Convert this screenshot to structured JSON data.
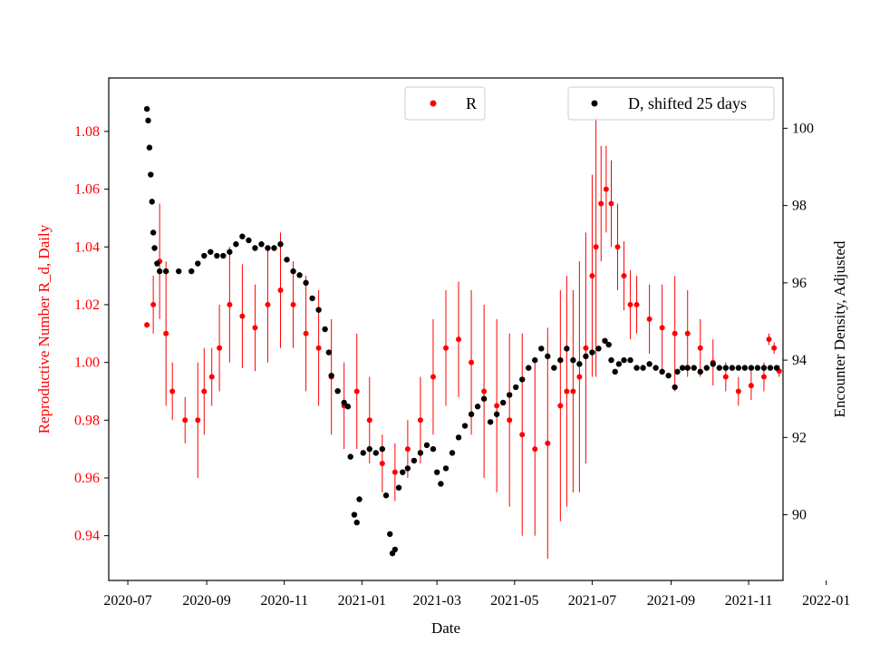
{
  "chart_data": {
    "type": "scatter",
    "title": "",
    "xlabel": "Date",
    "ylabel_left": "Reproductive Number R_d, Daily",
    "ylabel_right": "Encounter Density, Adjusted",
    "x_start": "2020-07-01",
    "x_end": "2022-01-01",
    "xlim_days": [
      -15,
      515
    ],
    "x_ticks": [
      {
        "label": "2020-07",
        "day": 0
      },
      {
        "label": "2020-09",
        "day": 62
      },
      {
        "label": "2020-11",
        "day": 123
      },
      {
        "label": "2021-01",
        "day": 184
      },
      {
        "label": "2021-03",
        "day": 243
      },
      {
        "label": "2021-05",
        "day": 304
      },
      {
        "label": "2021-07",
        "day": 365
      },
      {
        "label": "2021-09",
        "day": 427
      },
      {
        "label": "2021-11",
        "day": 488
      },
      {
        "label": "2022-01",
        "day": 549
      }
    ],
    "left_axis": {
      "ylim": [
        0.9245,
        1.0985
      ],
      "ticks": [
        "0.94",
        "0.96",
        "0.98",
        "1.00",
        "1.02",
        "1.04",
        "1.06",
        "1.08"
      ],
      "color": "#ff0000"
    },
    "right_axis": {
      "ylim": [
        88.3,
        101.3
      ],
      "ticks": [
        "90",
        "92",
        "94",
        "96",
        "98",
        "100"
      ],
      "color": "#000000"
    },
    "legend": [
      {
        "label": "R",
        "color": "#ff0000",
        "position": "top-center"
      },
      {
        "label": "D, shifted 25 days",
        "color": "#000000",
        "position": "top-right"
      }
    ],
    "series": [
      {
        "name": "R",
        "axis": "left",
        "color": "#ff0000",
        "marker": "dot-with-errorbar",
        "points": [
          [
            15,
            1.013,
            0.001
          ],
          [
            20,
            1.02,
            0.01
          ],
          [
            25,
            1.035,
            0.02
          ],
          [
            30,
            1.01,
            0.025
          ],
          [
            35,
            0.99,
            0.01
          ],
          [
            45,
            0.98,
            0.008
          ],
          [
            55,
            0.98,
            0.02
          ],
          [
            60,
            0.99,
            0.015
          ],
          [
            66,
            0.995,
            0.01
          ],
          [
            72,
            1.005,
            0.015
          ],
          [
            80,
            1.02,
            0.02
          ],
          [
            90,
            1.016,
            0.018
          ],
          [
            100,
            1.012,
            0.015
          ],
          [
            110,
            1.02,
            0.02
          ],
          [
            120,
            1.025,
            0.02
          ],
          [
            130,
            1.02,
            0.015
          ],
          [
            140,
            1.01,
            0.02
          ],
          [
            150,
            1.005,
            0.02
          ],
          [
            160,
            0.995,
            0.02
          ],
          [
            170,
            0.985,
            0.015
          ],
          [
            180,
            0.99,
            0.02
          ],
          [
            190,
            0.98,
            0.015
          ],
          [
            200,
            0.965,
            0.01
          ],
          [
            210,
            0.962,
            0.01
          ],
          [
            220,
            0.97,
            0.01
          ],
          [
            230,
            0.98,
            0.015
          ],
          [
            240,
            0.995,
            0.02
          ],
          [
            250,
            1.005,
            0.02
          ],
          [
            260,
            1.008,
            0.02
          ],
          [
            270,
            1.0,
            0.025
          ],
          [
            280,
            0.99,
            0.03
          ],
          [
            290,
            0.985,
            0.03
          ],
          [
            300,
            0.98,
            0.03
          ],
          [
            310,
            0.975,
            0.035
          ],
          [
            320,
            0.97,
            0.03
          ],
          [
            330,
            0.972,
            0.04
          ],
          [
            340,
            0.985,
            0.04
          ],
          [
            345,
            0.99,
            0.04
          ],
          [
            350,
            0.99,
            0.035
          ],
          [
            355,
            0.995,
            0.04
          ],
          [
            360,
            1.005,
            0.04
          ],
          [
            365,
            1.03,
            0.035
          ],
          [
            368,
            1.04,
            0.045
          ],
          [
            372,
            1.055,
            0.02
          ],
          [
            376,
            1.06,
            0.015
          ],
          [
            380,
            1.055,
            0.015
          ],
          [
            385,
            1.04,
            0.015
          ],
          [
            390,
            1.03,
            0.012
          ],
          [
            395,
            1.02,
            0.012
          ],
          [
            400,
            1.02,
            0.01
          ],
          [
            410,
            1.015,
            0.012
          ],
          [
            420,
            1.012,
            0.015
          ],
          [
            430,
            1.01,
            0.02
          ],
          [
            440,
            1.01,
            0.015
          ],
          [
            450,
            1.005,
            0.01
          ],
          [
            460,
            1.0,
            0.008
          ],
          [
            470,
            0.995,
            0.005
          ],
          [
            480,
            0.99,
            0.005
          ],
          [
            490,
            0.992,
            0.005
          ],
          [
            500,
            0.995,
            0.005
          ],
          [
            504,
            1.008,
            0.002
          ],
          [
            508,
            1.005,
            0.002
          ],
          [
            512,
            0.997,
            0.002
          ]
        ]
      },
      {
        "name": "D, shifted 25 days",
        "axis": "right",
        "color": "#000000",
        "marker": "dot",
        "points": [
          [
            15,
            100.5
          ],
          [
            16,
            100.2
          ],
          [
            17,
            99.5
          ],
          [
            18,
            98.8
          ],
          [
            19,
            98.1
          ],
          [
            20,
            97.3
          ],
          [
            21,
            96.9
          ],
          [
            23,
            96.5
          ],
          [
            25,
            96.3
          ],
          [
            30,
            96.3
          ],
          [
            40,
            96.3
          ],
          [
            50,
            96.3
          ],
          [
            55,
            96.5
          ],
          [
            60,
            96.7
          ],
          [
            65,
            96.8
          ],
          [
            70,
            96.7
          ],
          [
            75,
            96.7
          ],
          [
            80,
            96.8
          ],
          [
            85,
            97.0
          ],
          [
            90,
            97.2
          ],
          [
            95,
            97.1
          ],
          [
            100,
            96.9
          ],
          [
            105,
            97.0
          ],
          [
            110,
            96.9
          ],
          [
            115,
            96.9
          ],
          [
            120,
            97.0
          ],
          [
            125,
            96.6
          ],
          [
            130,
            96.3
          ],
          [
            135,
            96.2
          ],
          [
            140,
            96.0
          ],
          [
            145,
            95.6
          ],
          [
            150,
            95.3
          ],
          [
            155,
            94.8
          ],
          [
            158,
            94.2
          ],
          [
            160,
            93.6
          ],
          [
            165,
            93.2
          ],
          [
            170,
            92.9
          ],
          [
            173,
            92.8
          ],
          [
            175,
            91.5
          ],
          [
            178,
            90.0
          ],
          [
            180,
            89.8
          ],
          [
            182,
            90.4
          ],
          [
            185,
            91.6
          ],
          [
            190,
            91.7
          ],
          [
            195,
            91.6
          ],
          [
            200,
            91.7
          ],
          [
            203,
            90.5
          ],
          [
            206,
            89.5
          ],
          [
            208,
            89.0
          ],
          [
            210,
            89.1
          ],
          [
            213,
            90.7
          ],
          [
            216,
            91.1
          ],
          [
            220,
            91.2
          ],
          [
            225,
            91.4
          ],
          [
            230,
            91.6
          ],
          [
            235,
            91.8
          ],
          [
            240,
            91.7
          ],
          [
            243,
            91.1
          ],
          [
            246,
            90.8
          ],
          [
            250,
            91.2
          ],
          [
            255,
            91.6
          ],
          [
            260,
            92.0
          ],
          [
            265,
            92.3
          ],
          [
            270,
            92.6
          ],
          [
            275,
            92.8
          ],
          [
            280,
            93.0
          ],
          [
            285,
            92.4
          ],
          [
            290,
            92.6
          ],
          [
            295,
            92.9
          ],
          [
            300,
            93.1
          ],
          [
            305,
            93.3
          ],
          [
            310,
            93.5
          ],
          [
            315,
            93.8
          ],
          [
            320,
            94.0
          ],
          [
            325,
            94.3
          ],
          [
            330,
            94.1
          ],
          [
            335,
            93.8
          ],
          [
            340,
            94.0
          ],
          [
            345,
            94.3
          ],
          [
            350,
            94.0
          ],
          [
            355,
            93.9
          ],
          [
            360,
            94.1
          ],
          [
            365,
            94.2
          ],
          [
            370,
            94.3
          ],
          [
            375,
            94.5
          ],
          [
            378,
            94.4
          ],
          [
            380,
            94.0
          ],
          [
            383,
            93.7
          ],
          [
            386,
            93.9
          ],
          [
            390,
            94.0
          ],
          [
            395,
            94.0
          ],
          [
            400,
            93.8
          ],
          [
            405,
            93.8
          ],
          [
            410,
            93.9
          ],
          [
            415,
            93.8
          ],
          [
            420,
            93.7
          ],
          [
            425,
            93.6
          ],
          [
            430,
            93.3
          ],
          [
            432,
            93.7
          ],
          [
            436,
            93.8
          ],
          [
            440,
            93.8
          ],
          [
            445,
            93.8
          ],
          [
            450,
            93.7
          ],
          [
            455,
            93.8
          ],
          [
            460,
            93.9
          ],
          [
            465,
            93.8
          ],
          [
            470,
            93.8
          ],
          [
            475,
            93.8
          ],
          [
            480,
            93.8
          ],
          [
            485,
            93.8
          ],
          [
            490,
            93.8
          ],
          [
            495,
            93.8
          ],
          [
            500,
            93.8
          ],
          [
            505,
            93.8
          ],
          [
            510,
            93.8
          ]
        ]
      }
    ]
  }
}
